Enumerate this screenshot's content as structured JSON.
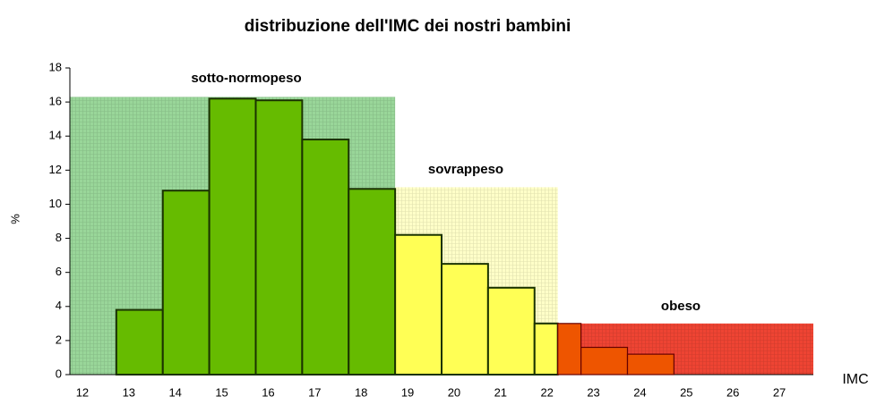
{
  "chart_data": {
    "type": "bar",
    "title": "distribuzione dell'IMC dei nostri bambini",
    "xlabel": "IMC",
    "ylabel": "%",
    "categories": [
      12,
      13,
      14,
      15,
      16,
      17,
      18,
      19,
      20,
      21,
      22,
      23,
      24,
      25,
      26,
      27
    ],
    "values": [
      null,
      3.8,
      10.8,
      16.2,
      16.1,
      13.8,
      10.9,
      8.2,
      6.5,
      5.1,
      3.0,
      1.6,
      1.2,
      null,
      null,
      null
    ],
    "ylim": [
      0,
      18
    ],
    "yticks": [
      0,
      2,
      4,
      6,
      8,
      10,
      12,
      14,
      16,
      18
    ],
    "zones": [
      {
        "label": "sotto-normopeso",
        "start": 11.5,
        "end": 18.5,
        "top": 16.3,
        "color": "#99d699",
        "bar_color": "#66bb00"
      },
      {
        "label": "sovrappeso",
        "start": 18.5,
        "end": 22,
        "top": 11,
        "color": "#ffffc8",
        "bar_color": "#ffff55"
      },
      {
        "label": "obeso",
        "start": 22,
        "end": 27.5,
        "top": 3,
        "color": "#ee4433",
        "bar_color": "#ee5500"
      }
    ]
  }
}
